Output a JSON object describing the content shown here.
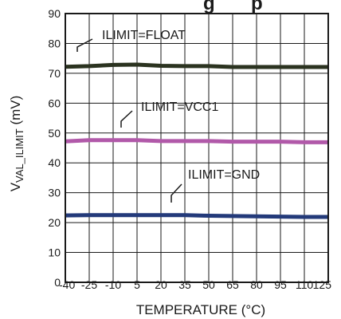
{
  "chart_data": {
    "type": "line",
    "title": "",
    "title_fragment": "g",
    "title_fragment_2": "p",
    "xlabel": "TEMPERATURE (°C)",
    "ylabel": "VVAL_ILIMIT (mV)",
    "ylabel_main": "V",
    "ylabel_sub": "VAL_ILIMIT",
    "ylabel_unit": " (mV)",
    "xlim": [
      -40,
      125
    ],
    "ylim": [
      0,
      90
    ],
    "x_ticks": [
      -40,
      -25,
      -10,
      5,
      20,
      35,
      50,
      65,
      80,
      95,
      110,
      125
    ],
    "y_ticks": [
      0,
      10,
      20,
      30,
      40,
      50,
      60,
      70,
      80,
      90
    ],
    "grid": true,
    "x": [
      -40,
      -25,
      -10,
      5,
      20,
      35,
      50,
      65,
      80,
      95,
      110,
      125
    ],
    "series": [
      {
        "name": "ILIMIT=FLOAT",
        "color": "#2b3320",
        "values": [
          72.2,
          72.4,
          72.8,
          72.9,
          72.5,
          72.4,
          72.4,
          72.1,
          72.1,
          72.1,
          72.1,
          72.1
        ]
      },
      {
        "name": "ILIMIT=VCC1",
        "color": "#b159a9",
        "values": [
          47.2,
          47.6,
          47.6,
          47.6,
          47.3,
          47.3,
          47.3,
          47.1,
          47.1,
          47.1,
          46.9,
          46.9
        ]
      },
      {
        "name": "ILIMIT=GND",
        "color": "#233a7a",
        "values": [
          22.4,
          22.5,
          22.5,
          22.5,
          22.5,
          22.5,
          22.3,
          22.2,
          22.1,
          22.0,
          21.9,
          21.9
        ]
      }
    ]
  }
}
